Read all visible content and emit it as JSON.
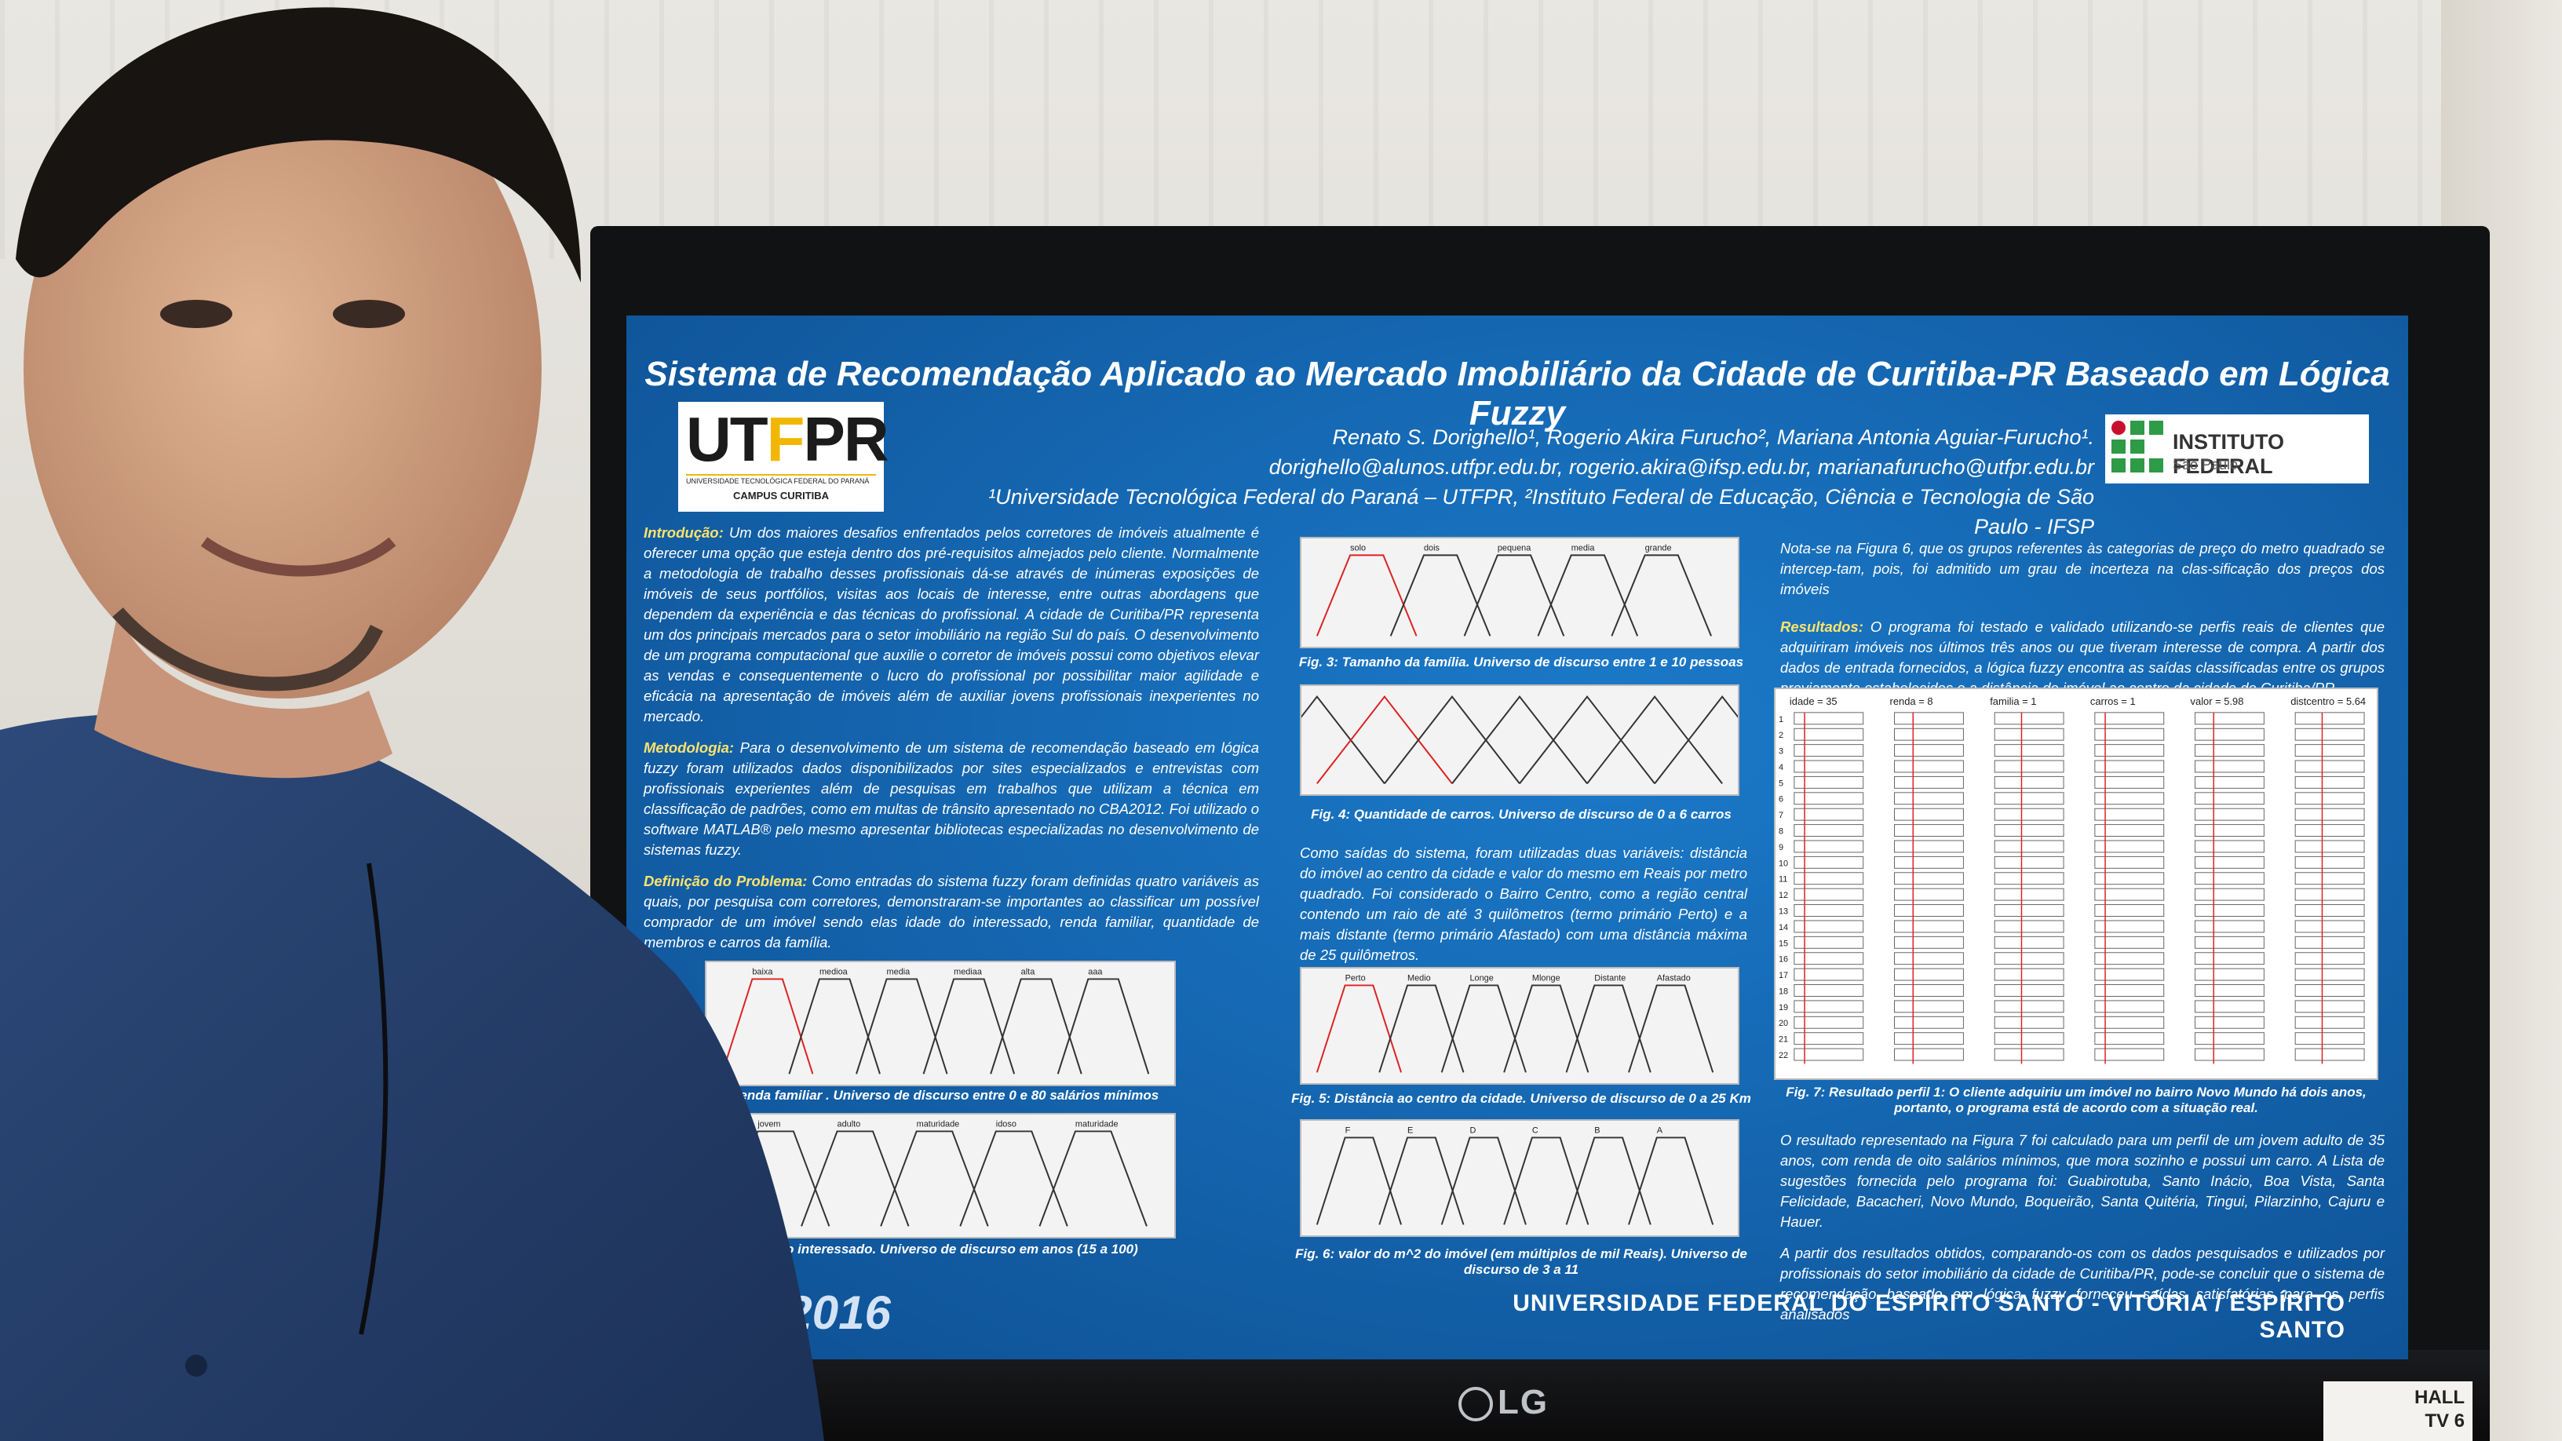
{
  "poster": {
    "title": "Sistema de Recomendação Aplicado ao Mercado Imobiliário da Cidade de Curitiba-PR Baseado em Lógica Fuzzy",
    "authors": "Renato S. Dorighello¹, Rogerio Akira Furucho², Mariana Antonia Aguiar-Furucho¹.",
    "emails": "dorighello@alunos.utfpr.edu.br, rogerio.akira@ifsp.edu.br, marianafurucho@utfpr.edu.br",
    "affiliations": "¹Universidade Tecnológica Federal do Paraná – UTFPR, ²Instituto Federal de Educação, Ciência e Tecnologia de São Paulo - IFSP",
    "logo_left": {
      "text_main": "UTFPR",
      "text_sub": "UNIVERSIDADE TECNOLÓGICA FEDERAL DO PARANÁ",
      "campus": "CAMPUS CURITIBA"
    },
    "logo_right": {
      "name": "INSTITUTO FEDERAL",
      "sub": "São Paulo"
    },
    "col1": {
      "intro_lead": "Introdução:",
      "intro": "Um dos maiores desafios enfrentados pelos corretores de imóveis atualmente é oferecer uma opção que esteja dentro dos pré-requisitos almejados pelo cliente. Normalmente a metodologia de trabalho desses profissionais dá-se através de inúmeras exposições de imóveis de seus portfólios, visitas aos locais de interesse, entre outras abordagens que dependem da experiência e das técnicas do profissional. A cidade de Curitiba/PR representa um dos principais mercados para o setor imobiliário na região Sul do país. O desenvolvimento de um programa computacional que auxilie o corretor de imóveis possui como objetivos elevar as vendas e consequentemente o lucro do profissional por possibilitar maior agilidade e eficácia na apresentação de imóveis além de auxiliar jovens profissionais inexperientes no mercado.",
      "method_lead": "Metodologia:",
      "method": "Para o desenvolvimento de um sistema de recomendação baseado em lógica fuzzy foram utilizados dados disponibilizados por sites especializados e entrevistas com profissionais experientes além de pesquisas em trabalhos que utilizam a técnica em classificação de padrões, como em multas de trânsito apresentado no CBA2012. Foi utilizado o software MATLAB® pelo mesmo apresentar bibliotecas especializadas no desenvolvimento de sistemas fuzzy.",
      "problem_lead": "Definição do Problema:",
      "problem": "Como entradas do sistema fuzzy foram definidas quatro variáveis as quais, por pesquisa com corretores, demonstraram-se importantes ao classificar um possível comprador de um imóvel sendo elas idade do interessado, renda familiar, quantidade de membros e carros da família.",
      "fig1_caption": ": Renda familiar . Universo de discurso entre 0 e 80 salários mínimos",
      "fig2_caption": "dade do interessado. Universo de discurso em anos (15 a 100)"
    },
    "col2": {
      "fig3_caption": "Fig. 3: Tamanho da família. Universo de discurso entre 1 e 10 pessoas",
      "fig4_caption": "Fig. 4: Quantidade de carros. Universo de discurso de 0 a 6 carros",
      "outputs": "Como saídas do sistema, foram utilizadas duas variáveis: distância do imóvel ao centro da cidade e valor do mesmo em Reais por metro quadrado. Foi considerado o Bairro Centro, como a região central contendo um raio de até 3 quilômetros (termo primário Perto) e a mais distante (termo primário Afastado) com uma distância máxima de 25 quilômetros.",
      "fig5_caption": "Fig. 5: Distância ao centro da cidade. Universo de discurso de 0 a 25 Km",
      "fig6_caption": "Fig. 6: valor do m^2 do imóvel (em múltiplos de mil Reais). Universo de discurso de 3 a 11"
    },
    "col3": {
      "note": "Nota-se na Figura 6, que os grupos referentes às categorias de preço do metro quadrado se intercep-tam, pois, foi admitido um grau de incerteza na clas-sificação dos preços dos imóveis",
      "results_lead": "Resultados:",
      "results": "O programa foi testado e validado utilizando-se perfis reais de clientes que adquiriram imóveis nos últimos três anos ou que tiveram interesse de compra. A partir dos dados de entrada fornecidos, a lógica fuzzy encontra as saídas classificadas entre os grupos previamente estabelecidos e a distância do imóvel ao centro da cidade de Curitiba/PR.",
      "fig7_headers": [
        "idade = 35",
        "renda = 8",
        "familia = 1",
        "carros = 1",
        "valor = 5.98",
        "distcentro = 5.64"
      ],
      "fig7_caption": "Fig. 7: Resultado perfil 1: O cliente adquiriu um imóvel no bairro Novo Mundo há dois anos, portanto, o programa está de acordo com a situação real.",
      "result2": "O resultado representado na Figura 7 foi calculado para um perfil de um jovem adulto de 35 anos, com renda de oito salários mínimos, que mora sozinho e possui um carro. A Lista de sugestões fornecida pelo programa foi: Guabirotuba, Santo Inácio, Boa Vista, Santa Felicidade, Bacacheri, Novo Mundo, Boqueirão, Santa Quitéria, Tingui, Pilarzinho, Cajuru e Hauer.",
      "conclusion": "A partir dos resultados obtidos, comparando-os com os dados pesquisados e utilizados por profissionais do setor imobiliário da cidade de Curitiba/PR, pode-se concluir que o sistema de recomendação baseado em lógica fuzzy forneceu saídas satisfatórias para os perfis analisados"
    },
    "footer": "UNIVERSIDADE FEDERAL DO ESPÍRITO SANTO - VITÓRIA / ESPÍRITO SANTO",
    "event_logo": "A2016",
    "fig_labels": {
      "fig1": [
        "baixa",
        "medioa",
        "media",
        "mediaa",
        "alta",
        "aaa"
      ],
      "fig2": [
        "jovem",
        "adulto",
        "maturidade",
        "idoso",
        "maturidade"
      ],
      "fig3": [
        "solo",
        "dois",
        "pequena",
        "media",
        "grande"
      ],
      "fig5": [
        "Perto",
        "Medio",
        "Longe",
        "Mlonge",
        "Distante",
        "Afastado"
      ],
      "fig6": [
        "F",
        "E",
        "D",
        "C",
        "B",
        "A"
      ]
    }
  },
  "tv": {
    "brand": "LG",
    "label_line1": "HALL",
    "label_line2": "TV 6"
  },
  "colors": {
    "poster_blue": "#1567b1",
    "title_text": "#ffffff",
    "accent_yellow": "#ffe36a"
  }
}
